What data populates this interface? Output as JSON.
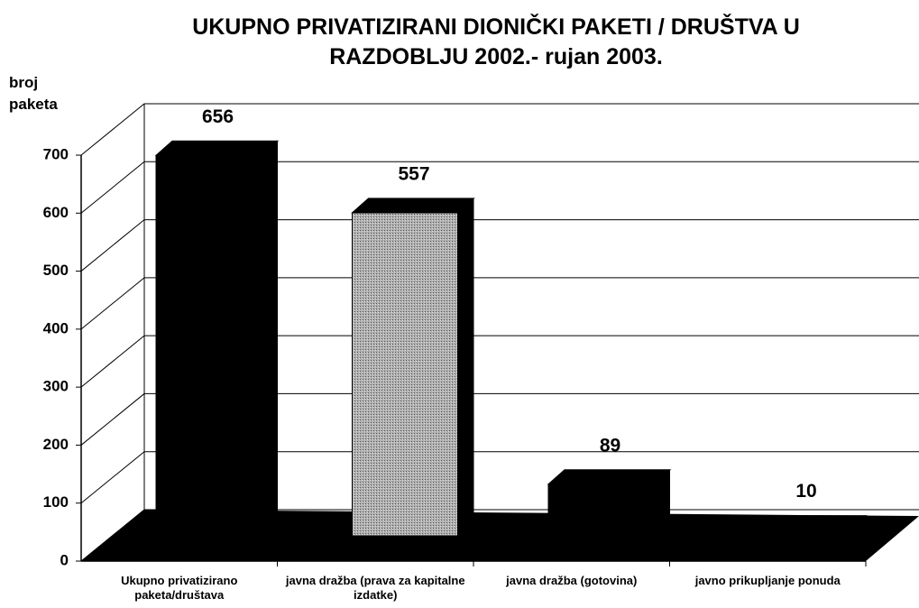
{
  "chart_data": {
    "type": "bar3d",
    "title": "UKUPNO PRIVATIZIRANI DIONIČKI PAKETI / DRUŠTVA U RAZDOBLJU 2002.- rujan 2003.",
    "y_label": "broj paketa",
    "categories": [
      "Ukupno privatizirano paketa/društava",
      "javna dražba (prava za kapitalne izdatke)",
      "javna dražba (gotovina)",
      "javno prikupljanje ponuda"
    ],
    "values": [
      656,
      557,
      89,
      10
    ],
    "colors": [
      "#000000",
      "#9a9a9a",
      "#000000",
      "#000000"
    ],
    "ylim": [
      0,
      700
    ],
    "yticks": [
      0,
      100,
      200,
      300,
      400,
      500,
      600,
      700
    ],
    "grid": true
  }
}
